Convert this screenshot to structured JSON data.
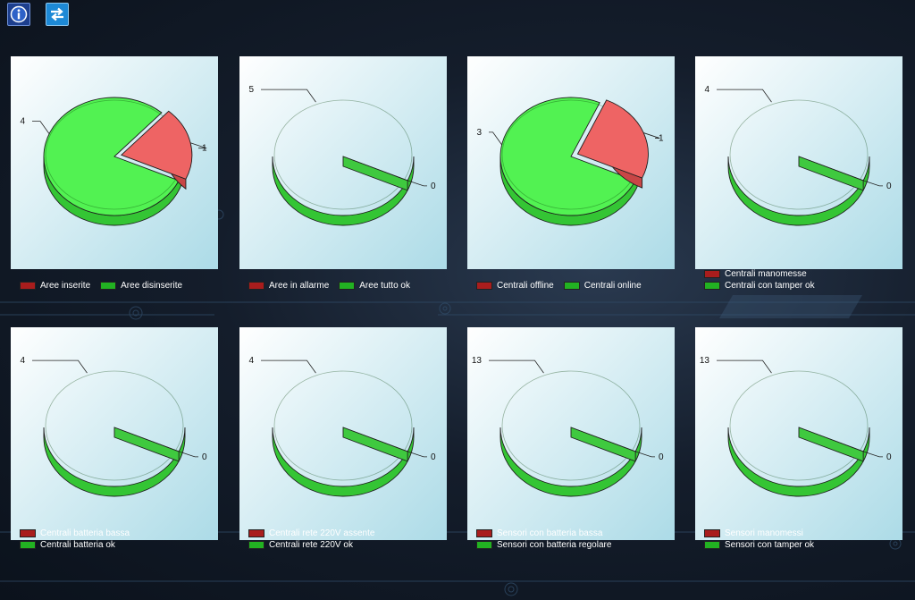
{
  "toolbar": {
    "info_icon": "info-icon",
    "switch_icon": "switch-arrows-icon"
  },
  "colors": {
    "red": "#a91d1d",
    "green": "#22b222",
    "pie_green": "#52f252",
    "pie_red": "#ee6464"
  },
  "charts": [
    {
      "id": "aree-inserite",
      "legend_layout": "row",
      "legend": [
        "Aree inserite",
        "Aree disinserite"
      ],
      "chart_data": {
        "type": "pie",
        "series": [
          {
            "name": "Aree inserite",
            "value": 1
          },
          {
            "name": "Aree disinserite",
            "value": 4
          }
        ]
      }
    },
    {
      "id": "aree-allarme",
      "legend_layout": "row",
      "legend": [
        "Aree in allarme",
        "Aree tutto ok"
      ],
      "chart_data": {
        "type": "pie",
        "series": [
          {
            "name": "Aree in allarme",
            "value": 0
          },
          {
            "name": "Aree tutto ok",
            "value": 5
          }
        ]
      }
    },
    {
      "id": "centrali-offline",
      "legend_layout": "row",
      "legend": [
        "Centrali offline",
        "Centrali online"
      ],
      "chart_data": {
        "type": "pie",
        "series": [
          {
            "name": "Centrali offline",
            "value": 1
          },
          {
            "name": "Centrali online",
            "value": 3
          }
        ]
      }
    },
    {
      "id": "centrali-manomesse",
      "legend_layout": "col",
      "legend": [
        "Centrali manomesse",
        "Centrali con tamper ok"
      ],
      "chart_data": {
        "type": "pie",
        "series": [
          {
            "name": "Centrali manomesse",
            "value": 0
          },
          {
            "name": "Centrali con tamper ok",
            "value": 4
          }
        ]
      }
    },
    {
      "id": "centrali-batteria",
      "legend_layout": "col",
      "legend": [
        "Centrali batteria bassa",
        "Centrali batteria ok"
      ],
      "chart_data": {
        "type": "pie",
        "series": [
          {
            "name": "Centrali batteria bassa",
            "value": 0
          },
          {
            "name": "Centrali batteria ok",
            "value": 4
          }
        ]
      }
    },
    {
      "id": "centrali-rete",
      "legend_layout": "col",
      "legend": [
        "Centrali rete 220V assente",
        "Centrali rete 220V ok"
      ],
      "chart_data": {
        "type": "pie",
        "series": [
          {
            "name": "Centrali rete 220V assente",
            "value": 0
          },
          {
            "name": "Centrali rete 220V ok",
            "value": 4
          }
        ]
      }
    },
    {
      "id": "sensori-batteria",
      "legend_layout": "col",
      "legend": [
        "Sensori con batteria bassa",
        "Sensori con batteria regolare"
      ],
      "chart_data": {
        "type": "pie",
        "series": [
          {
            "name": "Sensori con batteria bassa",
            "value": 0
          },
          {
            "name": "Sensori con batteria regolare",
            "value": 13
          }
        ]
      }
    },
    {
      "id": "sensori-manomessi",
      "legend_layout": "col",
      "legend": [
        "Sensori manomessi",
        "Sensori con tamper ok"
      ],
      "chart_data": {
        "type": "pie",
        "series": [
          {
            "name": "Sensori manomessi",
            "value": 0
          },
          {
            "name": "Sensori con tamper ok",
            "value": 13
          }
        ]
      }
    }
  ]
}
